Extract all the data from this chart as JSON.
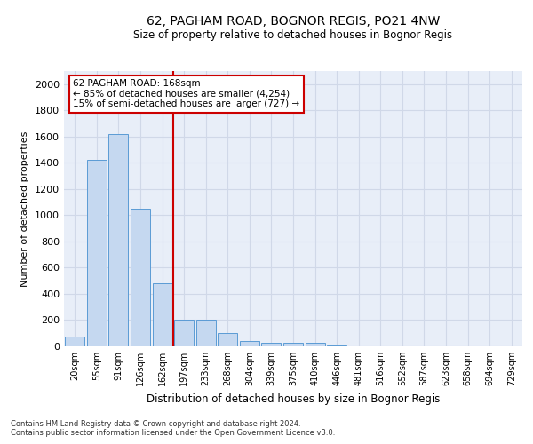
{
  "title": "62, PAGHAM ROAD, BOGNOR REGIS, PO21 4NW",
  "subtitle": "Size of property relative to detached houses in Bognor Regis",
  "xlabel": "Distribution of detached houses by size in Bognor Regis",
  "ylabel": "Number of detached properties",
  "categories": [
    "20sqm",
    "55sqm",
    "91sqm",
    "126sqm",
    "162sqm",
    "197sqm",
    "233sqm",
    "268sqm",
    "304sqm",
    "339sqm",
    "375sqm",
    "410sqm",
    "446sqm",
    "481sqm",
    "516sqm",
    "552sqm",
    "587sqm",
    "623sqm",
    "658sqm",
    "694sqm",
    "729sqm"
  ],
  "values": [
    75,
    1420,
    1620,
    1050,
    480,
    205,
    205,
    100,
    40,
    30,
    25,
    25,
    10,
    0,
    0,
    0,
    0,
    0,
    0,
    0,
    0
  ],
  "bar_color": "#c5d8f0",
  "bar_edge_color": "#5b9bd5",
  "highlight_index": 4,
  "annotation_text_line1": "62 PAGHAM ROAD: 168sqm",
  "annotation_text_line2": "← 85% of detached houses are smaller (4,254)",
  "annotation_text_line3": "15% of semi-detached houses are larger (727) →",
  "annotation_box_color": "#ffffff",
  "annotation_box_edge": "#cc0000",
  "vline_color": "#cc0000",
  "ylim": [
    0,
    2100
  ],
  "yticks": [
    0,
    200,
    400,
    600,
    800,
    1000,
    1200,
    1400,
    1600,
    1800,
    2000
  ],
  "footer1": "Contains HM Land Registry data © Crown copyright and database right 2024.",
  "footer2": "Contains public sector information licensed under the Open Government Licence v3.0.",
  "grid_color": "#d0d8e8",
  "bg_color": "#e8eef8"
}
